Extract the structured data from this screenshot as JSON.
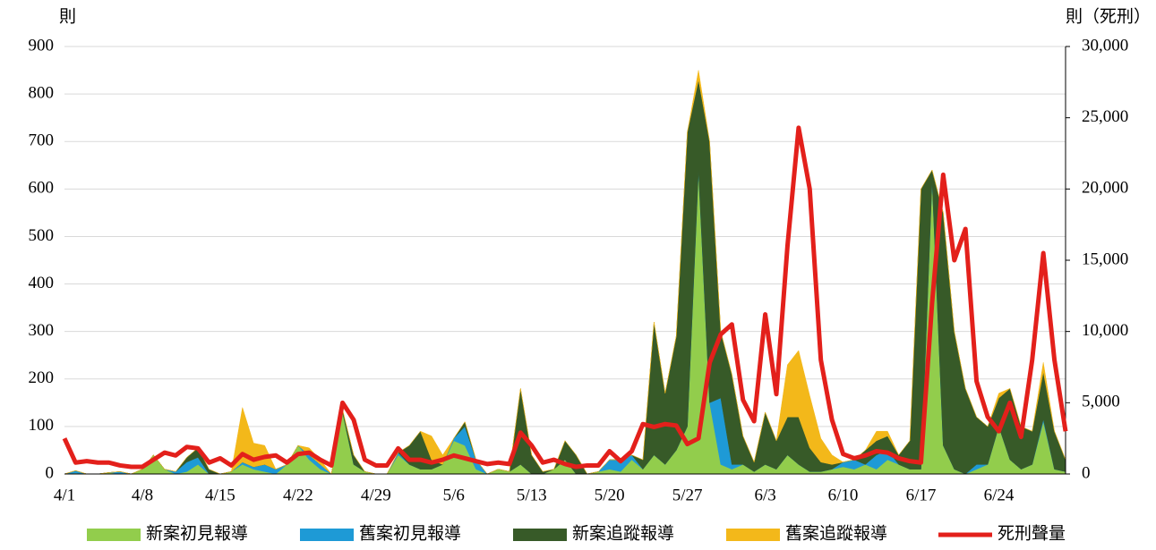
{
  "chart_data": {
    "type": "area",
    "y_label": "則",
    "y2_label": "則（死刑）",
    "categories": [
      "4/1",
      null,
      null,
      null,
      null,
      null,
      null,
      "4/8",
      null,
      null,
      null,
      null,
      null,
      null,
      "4/15",
      null,
      null,
      null,
      null,
      null,
      null,
      "4/22",
      null,
      null,
      null,
      null,
      null,
      null,
      "4/29",
      null,
      null,
      null,
      null,
      null,
      null,
      "5/6",
      null,
      null,
      null,
      null,
      null,
      null,
      "5/13",
      null,
      null,
      null,
      null,
      null,
      null,
      "5/20",
      null,
      null,
      null,
      null,
      null,
      null,
      "5/27",
      null,
      null,
      null,
      null,
      null,
      null,
      "6/3",
      null,
      null,
      null,
      null,
      null,
      null,
      "6/10",
      null,
      null,
      null,
      null,
      null,
      null,
      "6/17",
      null,
      null,
      null,
      null,
      null,
      null,
      "6/24",
      null,
      null,
      null,
      null,
      null,
      null
    ],
    "stacked": true,
    "series": [
      {
        "name": "新案初見報導",
        "color": "#92cd4c",
        "values": [
          0,
          2,
          0,
          0,
          3,
          0,
          0,
          10,
          40,
          10,
          0,
          5,
          20,
          0,
          0,
          5,
          20,
          10,
          5,
          0,
          20,
          60,
          30,
          10,
          0,
          130,
          20,
          5,
          0,
          0,
          40,
          20,
          10,
          10,
          20,
          70,
          60,
          10,
          0,
          10,
          5,
          20,
          0,
          0,
          10,
          30,
          0,
          0,
          5,
          10,
          5,
          30,
          10,
          40,
          20,
          50,
          100,
          640,
          150,
          20,
          10,
          20,
          5,
          20,
          10,
          40,
          20,
          5,
          5,
          10,
          15,
          10,
          20,
          10,
          30,
          20,
          10,
          10,
          620,
          60,
          10,
          0,
          10,
          20,
          100,
          30,
          10,
          20,
          110,
          10,
          5
        ]
      },
      {
        "name": "舊案初見報導",
        "color": "#1e9ad6",
        "values": [
          0,
          5,
          0,
          0,
          0,
          5,
          0,
          0,
          0,
          0,
          5,
          20,
          15,
          0,
          0,
          0,
          5,
          5,
          15,
          10,
          0,
          0,
          10,
          10,
          0,
          0,
          0,
          0,
          0,
          0,
          5,
          0,
          0,
          0,
          0,
          5,
          40,
          20,
          0,
          0,
          0,
          0,
          0,
          0,
          0,
          0,
          0,
          0,
          0,
          20,
          25,
          10,
          0,
          0,
          0,
          0,
          0,
          0,
          0,
          140,
          10,
          0,
          0,
          0,
          0,
          0,
          0,
          0,
          0,
          0,
          10,
          20,
          0,
          30,
          20,
          0,
          0,
          0,
          0,
          0,
          0,
          0,
          10,
          0,
          0,
          0,
          0,
          0,
          5,
          0,
          0
        ]
      },
      {
        "name": "新案追蹤報導",
        "color": "#375a28",
        "values": [
          0,
          0,
          0,
          0,
          0,
          0,
          0,
          0,
          0,
          0,
          0,
          10,
          20,
          10,
          0,
          0,
          0,
          0,
          0,
          0,
          0,
          0,
          0,
          0,
          0,
          5,
          20,
          0,
          0,
          0,
          0,
          40,
          80,
          20,
          0,
          0,
          10,
          0,
          0,
          0,
          0,
          160,
          40,
          5,
          0,
          40,
          40,
          0,
          0,
          0,
          0,
          0,
          20,
          280,
          150,
          240,
          620,
          190,
          550,
          140,
          190,
          60,
          20,
          110,
          60,
          80,
          100,
          50,
          20,
          10,
          0,
          0,
          30,
          30,
          30,
          20,
          60,
          590,
          20,
          490,
          290,
          180,
          100,
          80,
          60,
          150,
          90,
          70,
          100,
          80,
          25
        ]
      },
      {
        "name": "舊案追蹤報導",
        "color": "#f3b81a",
        "values": [
          0,
          0,
          0,
          0,
          0,
          0,
          0,
          0,
          0,
          0,
          0,
          0,
          0,
          0,
          0,
          0,
          115,
          50,
          40,
          0,
          0,
          0,
          15,
          10,
          0,
          0,
          0,
          0,
          0,
          0,
          0,
          0,
          0,
          50,
          20,
          0,
          0,
          0,
          0,
          0,
          0,
          0,
          0,
          0,
          0,
          0,
          0,
          0,
          0,
          0,
          0,
          0,
          0,
          0,
          0,
          0,
          0,
          20,
          0,
          0,
          0,
          0,
          0,
          0,
          0,
          110,
          140,
          110,
          50,
          20,
          0,
          0,
          0,
          20,
          10,
          0,
          0,
          0,
          0,
          0,
          0,
          0,
          0,
          0,
          10,
          0,
          0,
          0,
          20,
          0,
          0
        ]
      },
      {
        "name": "死刑聲量",
        "color": "#e3201b",
        "type": "line",
        "axis": "y2",
        "values": [
          2500,
          800,
          900,
          800,
          800,
          600,
          500,
          500,
          1000,
          1500,
          1300,
          1900,
          1800,
          800,
          1100,
          600,
          1400,
          1000,
          1200,
          1300,
          800,
          1400,
          1500,
          1000,
          600,
          5000,
          3800,
          1000,
          600,
          600,
          1800,
          1000,
          1000,
          800,
          1000,
          1300,
          1100,
          900,
          700,
          800,
          700,
          2900,
          2000,
          800,
          1000,
          700,
          500,
          600,
          600,
          1600,
          900,
          1600,
          3500,
          3300,
          3500,
          3400,
          2100,
          2500,
          7800,
          9800,
          10500,
          5200,
          3700,
          11200,
          5600,
          16000,
          24300,
          20000,
          8000,
          3800,
          1400,
          1100,
          1300,
          1600,
          1500,
          1100,
          900,
          800,
          12000,
          21000,
          15000,
          17200,
          6500,
          4000,
          3000,
          5000,
          2600,
          8000,
          15500,
          8000,
          3000
        ]
      }
    ],
    "ylim": [
      0,
      900
    ],
    "yticks": [
      0,
      100,
      200,
      300,
      400,
      500,
      600,
      700,
      800,
      900
    ],
    "y2lim": [
      0,
      30000
    ],
    "y2ticks": [
      0,
      {
        "value": 5000,
        "label": "5,000"
      },
      {
        "value": 10000,
        "label": "10,000"
      },
      {
        "value": 15000,
        "label": "15,000"
      },
      {
        "value": 20000,
        "label": "20,000"
      },
      {
        "value": 25000,
        "label": "25,000"
      },
      {
        "value": 30000,
        "label": "30,000"
      }
    ],
    "grid": true,
    "legend": "bottom"
  }
}
